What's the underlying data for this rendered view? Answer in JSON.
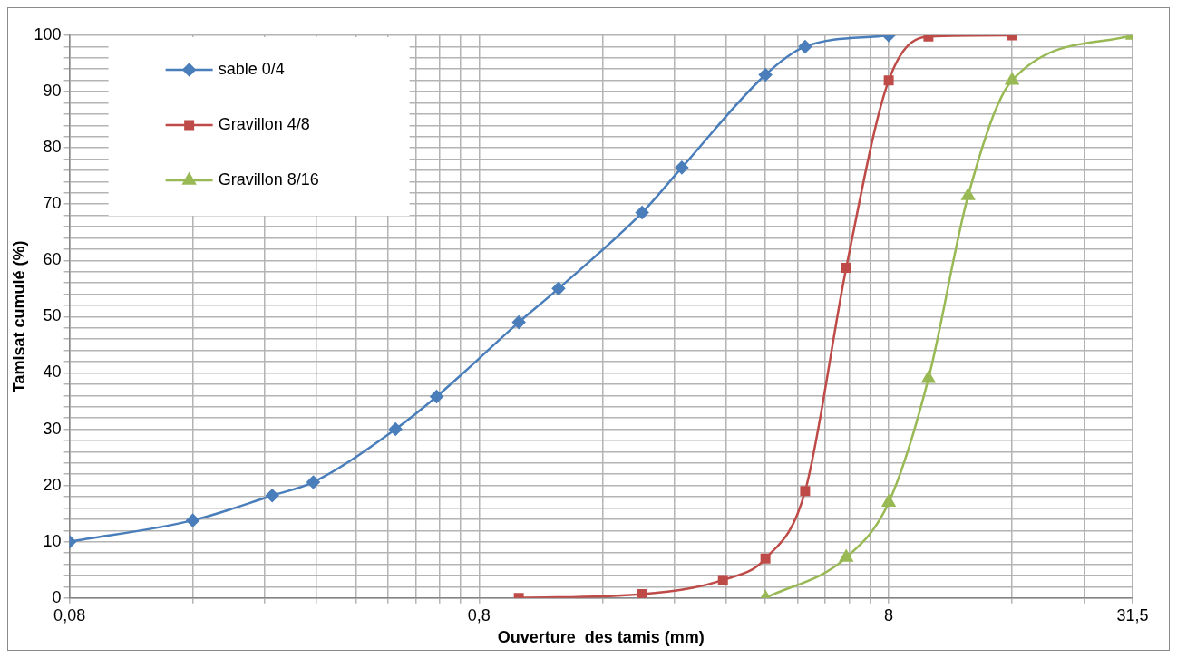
{
  "chart_data": {
    "type": "line",
    "xlabel": "Ouverture  des tamis (mm)",
    "ylabel": "Tamisat cumulé (%)",
    "log": "x",
    "grid": true,
    "legend": "top left",
    "line_style": "solid",
    "xlim": [
      0.08,
      31.5
    ],
    "xticks": [
      {
        "value": 0.08,
        "label": "0,08"
      },
      {
        "value": 0.16,
        "label": null
      },
      {
        "value": 0.24,
        "label": null
      },
      {
        "value": 0.32,
        "label": null
      },
      {
        "value": 0.4,
        "label": null
      },
      {
        "value": 0.48,
        "label": null
      },
      {
        "value": 0.56,
        "label": null
      },
      {
        "value": 0.64,
        "label": null
      },
      {
        "value": 0.72,
        "label": null
      },
      {
        "value": 0.8,
        "label": "0,8"
      },
      {
        "value": 1.6,
        "label": null
      },
      {
        "value": 2.4,
        "label": null
      },
      {
        "value": 3.2,
        "label": null
      },
      {
        "value": 4,
        "label": null
      },
      {
        "value": 4.8,
        "label": null
      },
      {
        "value": 5.6,
        "label": null
      },
      {
        "value": 6.4,
        "label": null
      },
      {
        "value": 7.2,
        "label": null
      },
      {
        "value": 8,
        "label": "8"
      },
      {
        "value": 16,
        "label": null
      },
      {
        "value": 24,
        "label": null
      },
      {
        "value": 31.5,
        "label": "31,5"
      }
    ],
    "ylim": [
      0,
      100
    ],
    "yticks": [
      0,
      {
        "value": 2,
        "label": null
      },
      {
        "value": 4,
        "label": null
      },
      {
        "value": 6,
        "label": null
      },
      {
        "value": 8,
        "label": null
      },
      10,
      {
        "value": 12,
        "label": null
      },
      {
        "value": 14,
        "label": null
      },
      {
        "value": 16,
        "label": null
      },
      {
        "value": 18,
        "label": null
      },
      20,
      {
        "value": 22,
        "label": null
      },
      {
        "value": 24,
        "label": null
      },
      {
        "value": 26,
        "label": null
      },
      {
        "value": 28,
        "label": null
      },
      30,
      {
        "value": 32,
        "label": null
      },
      {
        "value": 34,
        "label": null
      },
      {
        "value": 36,
        "label": null
      },
      {
        "value": 38,
        "label": null
      },
      40,
      {
        "value": 42,
        "label": null
      },
      {
        "value": 44,
        "label": null
      },
      {
        "value": 46,
        "label": null
      },
      {
        "value": 48,
        "label": null
      },
      50,
      {
        "value": 52,
        "label": null
      },
      {
        "value": 54,
        "label": null
      },
      {
        "value": 56,
        "label": null
      },
      {
        "value": 58,
        "label": null
      },
      60,
      {
        "value": 62,
        "label": null
      },
      {
        "value": 64,
        "label": null
      },
      {
        "value": 66,
        "label": null
      },
      {
        "value": 68,
        "label": null
      },
      70,
      {
        "value": 72,
        "label": null
      },
      {
        "value": 74,
        "label": null
      },
      {
        "value": 76,
        "label": null
      },
      {
        "value": 78,
        "label": null
      },
      80,
      {
        "value": 82,
        "label": null
      },
      {
        "value": 84,
        "label": null
      },
      {
        "value": 86,
        "label": null
      },
      {
        "value": 88,
        "label": null
      },
      90,
      {
        "value": 92,
        "label": null
      },
      {
        "value": 94,
        "label": null
      },
      {
        "value": 96,
        "label": null
      },
      {
        "value": 98,
        "label": null
      },
      100
    ],
    "series": [
      {
        "name": "sable 0/4",
        "color": "#4a7ebb",
        "marker": "diamond",
        "x": [
          0.08,
          0.16,
          0.25,
          0.315,
          0.5,
          0.63,
          1,
          1.25,
          2,
          2.5,
          4,
          5,
          8
        ],
        "values": [
          10,
          13.8,
          18.2,
          20.6,
          30,
          35.8,
          49,
          55,
          68.5,
          76.5,
          93,
          98,
          100
        ]
      },
      {
        "name": "Gravillon 4/8",
        "color": "#be4b48",
        "marker": "square",
        "x": [
          1,
          2,
          3.15,
          4,
          5,
          6.3,
          8,
          10,
          16
        ],
        "values": [
          0,
          0.7,
          3.2,
          7,
          19,
          58.7,
          92,
          99.8,
          100
        ]
      },
      {
        "name": "Gravillon 8/16",
        "color": "#98b954",
        "marker": "triangle",
        "x": [
          4,
          6.3,
          8,
          10,
          12.5,
          16,
          31.5
        ],
        "values": [
          0,
          7.2,
          17,
          39,
          71.5,
          92,
          100
        ]
      }
    ]
  }
}
